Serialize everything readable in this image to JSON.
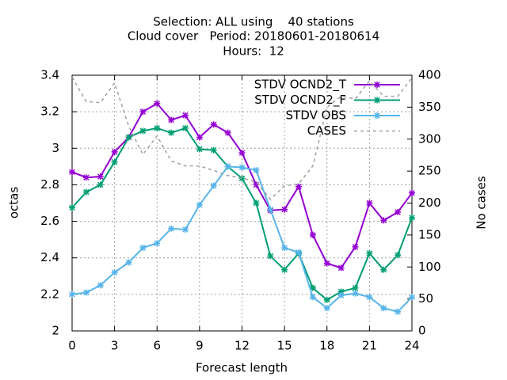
{
  "chart_data": {
    "type": "line",
    "title": [
      "Selection: ALL using    40 stations",
      "Cloud cover   Period: 20180601-20180614",
      "Hours:  12"
    ],
    "x_label": "Forecast length",
    "y_label": "octas",
    "y2_label": "No cases",
    "x": [
      0,
      1,
      2,
      3,
      4,
      5,
      6,
      7,
      8,
      9,
      10,
      11,
      12,
      13,
      14,
      15,
      16,
      17,
      18,
      19,
      20,
      21,
      22,
      23,
      24
    ],
    "xlim": [
      0,
      24
    ],
    "xticks": [
      0,
      3,
      6,
      9,
      12,
      15,
      18,
      21,
      24
    ],
    "ylim": [
      2,
      3.4
    ],
    "yticks": [
      2,
      2.2,
      2.4,
      2.6,
      2.8,
      3,
      3.2,
      3.4
    ],
    "y2lim": [
      0,
      400
    ],
    "y2ticks": [
      0,
      50,
      100,
      150,
      200,
      250,
      300,
      350,
      400
    ],
    "grid": true,
    "legend": "top-right",
    "series": [
      {
        "name": "STDV OCND2_T",
        "color": "#9400d3",
        "marker": true,
        "values": [
          2.87,
          2.84,
          2.845,
          2.98,
          3.06,
          3.2,
          3.245,
          3.155,
          3.18,
          3.06,
          3.13,
          3.085,
          2.975,
          2.8,
          2.66,
          2.665,
          2.79,
          2.525,
          2.37,
          2.345,
          2.46,
          2.7,
          2.605,
          2.65,
          2.755
        ]
      },
      {
        "name": "STDV OCND2_F",
        "color": "#009e73",
        "marker": true,
        "values": [
          2.675,
          2.76,
          2.8,
          2.925,
          3.06,
          3.095,
          3.11,
          3.085,
          3.11,
          2.995,
          2.99,
          2.9,
          2.835,
          2.7,
          2.41,
          2.335,
          2.425,
          2.235,
          2.17,
          2.215,
          2.235,
          2.425,
          2.335,
          2.415,
          2.62
        ]
      },
      {
        "name": "STDV OBS",
        "color": "#56b4e9",
        "marker": true,
        "values": [
          2.2,
          2.21,
          2.25,
          2.32,
          2.375,
          2.455,
          2.48,
          2.56,
          2.555,
          2.69,
          2.795,
          2.9,
          2.895,
          2.88,
          2.665,
          2.455,
          2.43,
          2.185,
          2.125,
          2.195,
          2.205,
          2.185,
          2.125,
          2.105,
          2.185
        ]
      },
      {
        "name": "CASES",
        "color": "#a0a0a0",
        "marker": false,
        "dashed": true,
        "axis": "y2",
        "values": [
          397,
          359,
          357,
          388,
          320,
          276,
          305,
          266,
          258,
          258,
          251,
          243,
          239,
          233,
          206,
          227,
          230,
          258,
          350,
          367,
          363,
          391,
          367,
          367,
          396
        ]
      }
    ]
  }
}
